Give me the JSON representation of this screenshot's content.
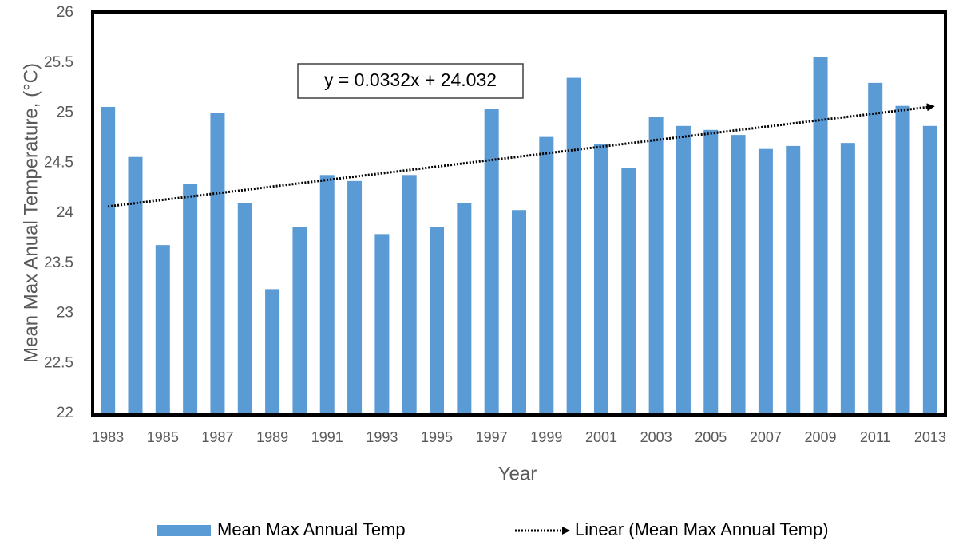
{
  "chart_data": {
    "type": "bar",
    "y_label": "Mean Max Anual Temperature, (°C)",
    "x_label": "Year",
    "categories": [
      "1983",
      null,
      "1985",
      null,
      "1987",
      null,
      "1989",
      null,
      "1991",
      null,
      "1993",
      null,
      "1995",
      null,
      "1997",
      null,
      "1999",
      null,
      "2001",
      null,
      "2003",
      null,
      "2005",
      null,
      "2007",
      null,
      "2009",
      null,
      "2011",
      null,
      "2013"
    ],
    "series": [
      {
        "name": "Mean Max Annual Temp",
        "color": "#5b9bd5",
        "values": [
          25.06,
          24.56,
          23.68,
          24.29,
          25.0,
          24.1,
          23.24,
          23.86,
          24.38,
          24.32,
          23.79,
          24.38,
          23.86,
          24.1,
          25.04,
          24.03,
          24.76,
          25.35,
          24.69,
          24.45,
          24.96,
          24.87,
          24.83,
          24.78,
          24.64,
          24.67,
          25.56,
          24.7,
          25.3,
          25.07,
          24.87
        ]
      }
    ],
    "trendline": {
      "name": "Linear (Mean Max Annual Temp)",
      "equation": "y = 0.0332x + 24.032",
      "slope": 0.0332,
      "intercept": 24.032,
      "color": "#000000"
    },
    "ylim": [
      22,
      26
    ],
    "yticks": [
      22,
      22.5,
      23,
      23.5,
      24,
      24.5,
      25,
      25.5,
      26
    ],
    "grid": false,
    "legend": "bottom"
  }
}
